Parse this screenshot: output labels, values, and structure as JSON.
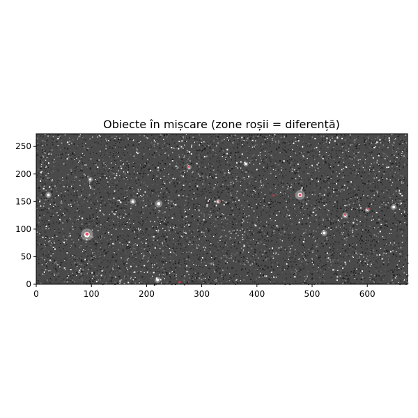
{
  "figure": {
    "title": "Obiecte în mișcare (zone roșii = diferență)"
  },
  "chart_data": {
    "type": "image",
    "title": "Obiecte în mișcare (zone roșii = diferență)",
    "xlim": [
      0,
      673
    ],
    "ylim": [
      0,
      273
    ],
    "x_ticks": [
      0,
      100,
      200,
      300,
      400,
      500,
      600
    ],
    "y_ticks": [
      0,
      50,
      100,
      150,
      200,
      250
    ],
    "colormap": "gray",
    "overlay_color": "#e8324a",
    "bright_stars": [
      {
        "x": 92,
        "y": 90,
        "r": 5.0
      },
      {
        "x": 478,
        "y": 162,
        "r": 4.0
      },
      {
        "x": 222,
        "y": 146,
        "r": 3.0
      },
      {
        "x": 175,
        "y": 150,
        "r": 2.5
      },
      {
        "x": 522,
        "y": 93,
        "r": 2.5
      },
      {
        "x": 648,
        "y": 140,
        "r": 2.5
      },
      {
        "x": 22,
        "y": 162,
        "r": 2.5
      },
      {
        "x": 220,
        "y": 8,
        "r": 2.5
      },
      {
        "x": 380,
        "y": 218,
        "r": 2.0
      },
      {
        "x": 98,
        "y": 190,
        "r": 2.0
      },
      {
        "x": 560,
        "y": 125,
        "r": 2.5
      },
      {
        "x": 600,
        "y": 135,
        "r": 2.0
      },
      {
        "x": 330,
        "y": 150,
        "r": 2.0
      },
      {
        "x": 277,
        "y": 212,
        "r": 2.0
      }
    ],
    "moving_objects": [
      {
        "x": 92,
        "y": 91,
        "r": 3.0
      },
      {
        "x": 478,
        "y": 162,
        "r": 2.5
      },
      {
        "x": 560,
        "y": 126,
        "r": 2.0
      },
      {
        "x": 601,
        "y": 137,
        "r": 1.5
      },
      {
        "x": 332,
        "y": 150,
        "r": 1.5
      },
      {
        "x": 277,
        "y": 213,
        "r": 1.5
      },
      {
        "x": 260,
        "y": 4,
        "r": 2.0
      },
      {
        "x": 430,
        "y": 161,
        "r": 1.2
      }
    ]
  }
}
